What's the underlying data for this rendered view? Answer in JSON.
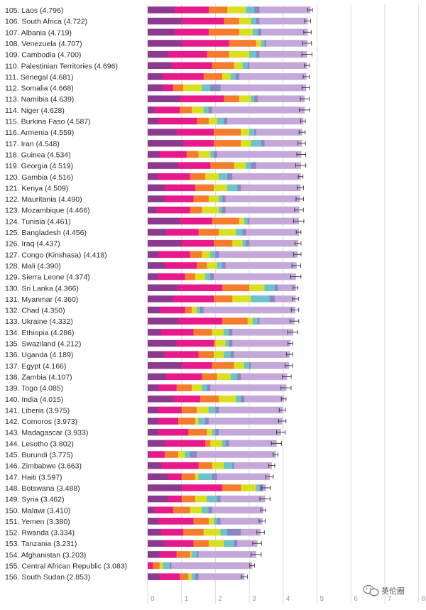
{
  "chart_data": {
    "type": "bar",
    "subtype": "stacked-horizontal-with-error-bars",
    "title": "",
    "xlabel": "",
    "ylabel": "",
    "xlim": [
      0,
      8
    ],
    "x_ticks": [
      "0",
      "1",
      "2",
      "3",
      "4",
      "5",
      "6",
      "7",
      "8"
    ],
    "segment_colors": [
      "#8b3a8f",
      "#e8198b",
      "#f47c2c",
      "#d9e021",
      "#6cc3cf",
      "#8e86c0",
      "#c4a8d9"
    ],
    "rows": [
      {
        "label": "105. Laos (4.796)",
        "value": 4.796,
        "segments": [
          0.8,
          1.0,
          0.55,
          0.55,
          0.25,
          0.15,
          1.5
        ]
      },
      {
        "label": "106. South Africa (4.722)",
        "value": 4.722,
        "segments": [
          1.0,
          1.25,
          0.45,
          0.35,
          0.15,
          0.1,
          1.42
        ]
      },
      {
        "label": "107. Albania (4.719)",
        "value": 4.719,
        "segments": [
          0.8,
          1.0,
          0.9,
          0.4,
          0.15,
          0.1,
          1.37
        ]
      },
      {
        "label": "108. Venezuela (4.707)",
        "value": 4.707,
        "segments": [
          1.0,
          1.4,
          0.8,
          0.15,
          0.1,
          0.05,
          1.21
        ]
      },
      {
        "label": "109. Cambodia (4.700)",
        "value": 4.7,
        "segments": [
          0.6,
          1.15,
          0.65,
          0.6,
          0.2,
          0.1,
          1.4
        ]
      },
      {
        "label": "110. Palestinian Territories (4.696)",
        "value": 4.696,
        "segments": [
          0.7,
          1.2,
          0.65,
          0.25,
          0.15,
          0.05,
          1.7
        ]
      },
      {
        "label": "111. Senegal (4.681)",
        "value": 4.681,
        "segments": [
          0.45,
          1.2,
          0.55,
          0.25,
          0.15,
          0.1,
          1.98
        ]
      },
      {
        "label": "112. Somalia (4.668)",
        "value": 4.668,
        "segments": [
          0.45,
          0.3,
          0.3,
          0.55,
          0.25,
          0.3,
          2.52
        ]
      },
      {
        "label": "113. Namibia (4.639)",
        "value": 4.639,
        "segments": [
          0.95,
          1.3,
          0.45,
          0.35,
          0.1,
          0.1,
          1.38
        ]
      },
      {
        "label": "114. Niger (4.628)",
        "value": 4.628,
        "segments": [
          0.2,
          0.75,
          0.35,
          0.35,
          0.15,
          0.1,
          2.73
        ]
      },
      {
        "label": "115. Burkina Faso (4.587)",
        "value": 4.587,
        "segments": [
          0.3,
          1.15,
          0.35,
          0.25,
          0.2,
          0.1,
          2.24
        ]
      },
      {
        "label": "116. Armenia (4.559)",
        "value": 4.559,
        "segments": [
          0.85,
          1.1,
          0.8,
          0.25,
          0.15,
          0.05,
          1.36
        ]
      },
      {
        "label": "117. Iran (4.548)",
        "value": 4.548,
        "segments": [
          1.05,
          0.9,
          0.8,
          0.3,
          0.3,
          0.1,
          1.1
        ]
      },
      {
        "label": "118. Guinea (4.534)",
        "value": 4.534,
        "segments": [
          0.35,
          0.8,
          0.35,
          0.35,
          0.1,
          0.1,
          2.48
        ]
      },
      {
        "label": "119. Georgia (4.519)",
        "value": 4.519,
        "segments": [
          0.9,
          0.95,
          0.7,
          0.35,
          0.15,
          0.15,
          1.32
        ]
      },
      {
        "label": "120. Gambia (4.516)",
        "value": 4.516,
        "segments": [
          0.3,
          0.95,
          0.45,
          0.4,
          0.25,
          0.15,
          2.01
        ]
      },
      {
        "label": "121. Kenya (4.509)",
        "value": 4.509,
        "segments": [
          0.5,
          0.9,
          0.55,
          0.4,
          0.3,
          0.1,
          1.76
        ]
      },
      {
        "label": "122. Mauritania (4.490)",
        "value": 4.49,
        "segments": [
          0.5,
          0.85,
          0.45,
          0.3,
          0.1,
          0.1,
          2.19
        ]
      },
      {
        "label": "123. Mozambique (4.466)",
        "value": 4.466,
        "segments": [
          0.25,
          1.0,
          0.35,
          0.5,
          0.1,
          0.1,
          2.17
        ]
      },
      {
        "label": "124. Tunisia (4.461)",
        "value": 4.461,
        "segments": [
          0.95,
          0.95,
          0.8,
          0.15,
          0.1,
          0.05,
          1.46
        ]
      },
      {
        "label": "125. Bangladesh (4.456)",
        "value": 4.456,
        "segments": [
          0.55,
          0.95,
          0.6,
          0.5,
          0.2,
          0.1,
          1.56
        ]
      },
      {
        "label": "126. Iraq (4.437)",
        "value": 4.437,
        "segments": [
          1.0,
          0.95,
          0.55,
          0.3,
          0.1,
          0.1,
          1.44
        ]
      },
      {
        "label": "127. Congo (Kinshasa) (4.418)",
        "value": 4.418,
        "segments": [
          0.3,
          0.95,
          0.35,
          0.25,
          0.15,
          0.1,
          2.32
        ]
      },
      {
        "label": "128. Mali (4.390)",
        "value": 4.39,
        "segments": [
          0.5,
          0.95,
          0.3,
          0.3,
          0.15,
          0.1,
          2.09
        ]
      },
      {
        "label": "129. Sierra Leone (4.374)",
        "value": 4.374,
        "segments": [
          0.3,
          0.8,
          0.3,
          0.3,
          0.15,
          0.1,
          2.42
        ]
      },
      {
        "label": "130. Sri Lanka (4.366)",
        "value": 4.366,
        "segments": [
          0.9,
          1.3,
          0.8,
          0.45,
          0.3,
          0.1,
          0.52
        ]
      },
      {
        "label": "131. Myanmar (4.360)",
        "value": 4.36,
        "segments": [
          0.75,
          1.2,
          0.55,
          0.55,
          0.55,
          0.15,
          0.61
        ]
      },
      {
        "label": "132. Chad (4.350)",
        "value": 4.35,
        "segments": [
          0.35,
          0.75,
          0.2,
          0.15,
          0.1,
          0.1,
          2.7
        ]
      },
      {
        "label": "133. Ukraine (4.332)",
        "value": 4.332,
        "segments": [
          0.9,
          1.3,
          0.75,
          0.15,
          0.15,
          0.05,
          1.03
        ]
      },
      {
        "label": "134. Ethiopia (4.286)",
        "value": 4.286,
        "segments": [
          0.4,
          0.95,
          0.55,
          0.35,
          0.15,
          0.1,
          1.79
        ]
      },
      {
        "label": "135. Swaziland (4.212)",
        "value": 4.212,
        "segments": [
          0.85,
          1.1,
          0.05,
          0.3,
          0.1,
          0.1,
          1.71
        ]
      },
      {
        "label": "136. Uganda (4.189)",
        "value": 4.189,
        "segments": [
          0.5,
          1.0,
          0.45,
          0.3,
          0.2,
          0.1,
          1.64
        ]
      },
      {
        "label": "137. Egypt (4.166)",
        "value": 4.166,
        "segments": [
          1.0,
          0.9,
          0.65,
          0.3,
          0.15,
          0.05,
          1.12
        ]
      },
      {
        "label": "138. Zambia (4.107)",
        "value": 4.107,
        "segments": [
          0.55,
          1.05,
          0.45,
          0.4,
          0.2,
          0.1,
          1.36
        ]
      },
      {
        "label": "139. Togo (4.085)",
        "value": 4.085,
        "segments": [
          0.3,
          0.55,
          0.45,
          0.3,
          0.15,
          0.1,
          2.24
        ]
      },
      {
        "label": "140. India (4.015)",
        "value": 4.015,
        "segments": [
          0.75,
          0.8,
          0.55,
          0.5,
          0.15,
          0.1,
          1.17
        ]
      },
      {
        "label": "141. Liberia (3.975)",
        "value": 3.975,
        "segments": [
          0.3,
          0.7,
          0.45,
          0.35,
          0.2,
          0.1,
          1.88
        ]
      },
      {
        "label": "142. Comoros (3.973)",
        "value": 3.973,
        "segments": [
          0.3,
          0.6,
          0.5,
          0.1,
          0.2,
          0.1,
          2.17
        ]
      },
      {
        "label": "143. Madagascar (3.933)",
        "value": 3.933,
        "segments": [
          0.3,
          0.9,
          0.55,
          0.15,
          0.1,
          0.1,
          1.83
        ]
      },
      {
        "label": "144. Lesotho (3.802)",
        "value": 3.802,
        "segments": [
          0.5,
          1.2,
          0.15,
          0.35,
          0.1,
          0.1,
          1.4
        ]
      },
      {
        "label": "145. Burundi (3.775)",
        "value": 3.775,
        "segments": [
          0.05,
          0.45,
          0.4,
          0.2,
          0.15,
          0.2,
          2.33
        ]
      },
      {
        "label": "146. Zimbabwe (3.663)",
        "value": 3.663,
        "segments": [
          0.4,
          1.1,
          0.4,
          0.35,
          0.25,
          0.05,
          1.11
        ]
      },
      {
        "label": "147. Haiti (3.597)",
        "value": 3.597,
        "segments": [
          0.6,
          0.4,
          0.4,
          0.1,
          0.4,
          0.15,
          1.55
        ]
      },
      {
        "label": "148. Botswana (3.488)",
        "value": 3.488,
        "segments": [
          1.0,
          1.2,
          0.55,
          0.45,
          0.1,
          0.1,
          0.09
        ]
      },
      {
        "label": "149. Syria (3.462)",
        "value": 3.462,
        "segments": [
          0.6,
          0.4,
          0.4,
          0.35,
          0.3,
          0.1,
          1.31
        ]
      },
      {
        "label": "150. Malawi (3.410)",
        "value": 3.41,
        "segments": [
          0.2,
          0.55,
          0.5,
          0.35,
          0.2,
          0.1,
          1.51
        ]
      },
      {
        "label": "151. Yemen (3.380)",
        "value": 3.38,
        "segments": [
          0.3,
          1.05,
          0.45,
          0.15,
          0.1,
          0.1,
          1.23
        ]
      },
      {
        "label": "152. Rwanda (3.334)",
        "value": 3.334,
        "segments": [
          0.4,
          0.65,
          0.6,
          0.5,
          0.2,
          0.4,
          0.58
        ]
      },
      {
        "label": "153. Tanzania (3.231)",
        "value": 3.231,
        "segments": [
          0.5,
          0.85,
          0.45,
          0.45,
          0.3,
          0.1,
          0.58
        ]
      },
      {
        "label": "154. Afghanistan (3.203)",
        "value": 3.203,
        "segments": [
          0.35,
          0.5,
          0.4,
          0.05,
          0.15,
          0.05,
          1.7
        ]
      },
      {
        "label": "155. Central African Republic (3.083)",
        "value": 3.083,
        "segments": [
          0.0,
          0.15,
          0.2,
          0.1,
          0.2,
          0.05,
          2.38
        ]
      },
      {
        "label": "156. South Sudan (2.853)",
        "value": 2.853,
        "segments": [
          0.35,
          0.6,
          0.25,
          0.1,
          0.1,
          0.1,
          1.35
        ]
      }
    ]
  },
  "watermark": {
    "text": "英伦圈",
    "icon": "wechat-icon"
  }
}
